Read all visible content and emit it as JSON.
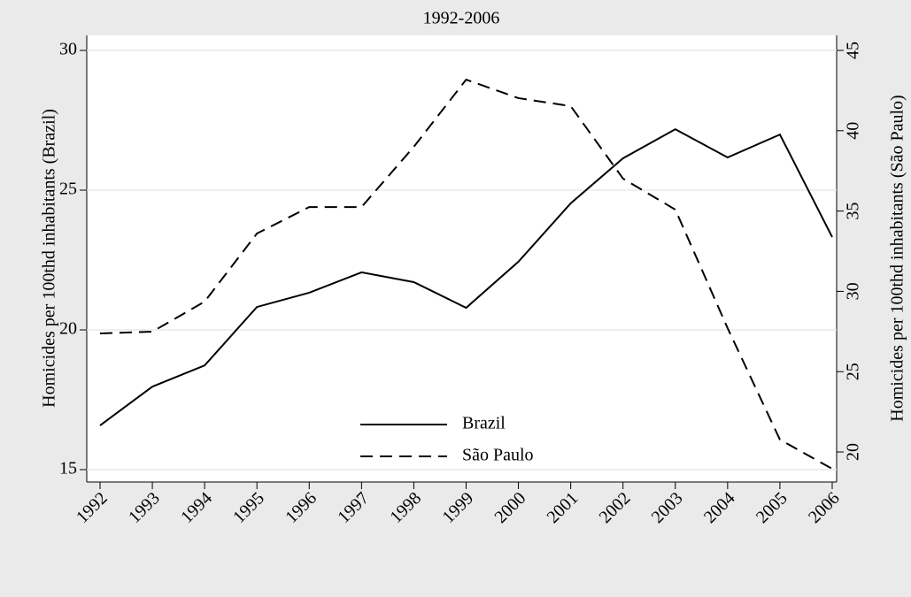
{
  "chart_data": {
    "type": "line",
    "title": "1992-2006",
    "ylabel": "Homicides per 100thd inhabitants (Brazil)",
    "y2label": "Homicides per 100thd inhabitants (São Paulo)",
    "x": [
      1992,
      1993,
      1994,
      1995,
      1996,
      1997,
      1998,
      1999,
      2000,
      2001,
      2002,
      2003,
      2004,
      2005,
      2006
    ],
    "xlim": [
      1992,
      2006
    ],
    "xticks": [
      1992,
      1993,
      1994,
      1995,
      1996,
      1997,
      1998,
      1999,
      2000,
      2001,
      2002,
      2003,
      2004,
      2005,
      2006
    ],
    "ylim": [
      15,
      30
    ],
    "yticks": [
      15,
      20,
      25,
      30
    ],
    "y2lim": [
      18.9,
      45
    ],
    "y2ticks": [
      20,
      25,
      30,
      35,
      40,
      45
    ],
    "grid": true,
    "legend": "bottom",
    "series": [
      {
        "name": "Brazil",
        "color": "#000000",
        "dash": false,
        "values": [
          16.58,
          17.97,
          18.73,
          20.82,
          21.33,
          22.06,
          21.71,
          20.79,
          22.44,
          24.53,
          26.14,
          27.18,
          26.17,
          26.99,
          23.32
        ]
      },
      {
        "name": "São Paulo",
        "color": "#000000",
        "dash": true,
        "axis": "y2",
        "values": [
          27.38,
          27.49,
          29.36,
          33.6,
          35.25,
          35.25,
          39.0,
          43.18,
          42.03,
          41.53,
          37.02,
          35.09,
          27.71,
          20.77,
          18.95
        ]
      }
    ]
  }
}
